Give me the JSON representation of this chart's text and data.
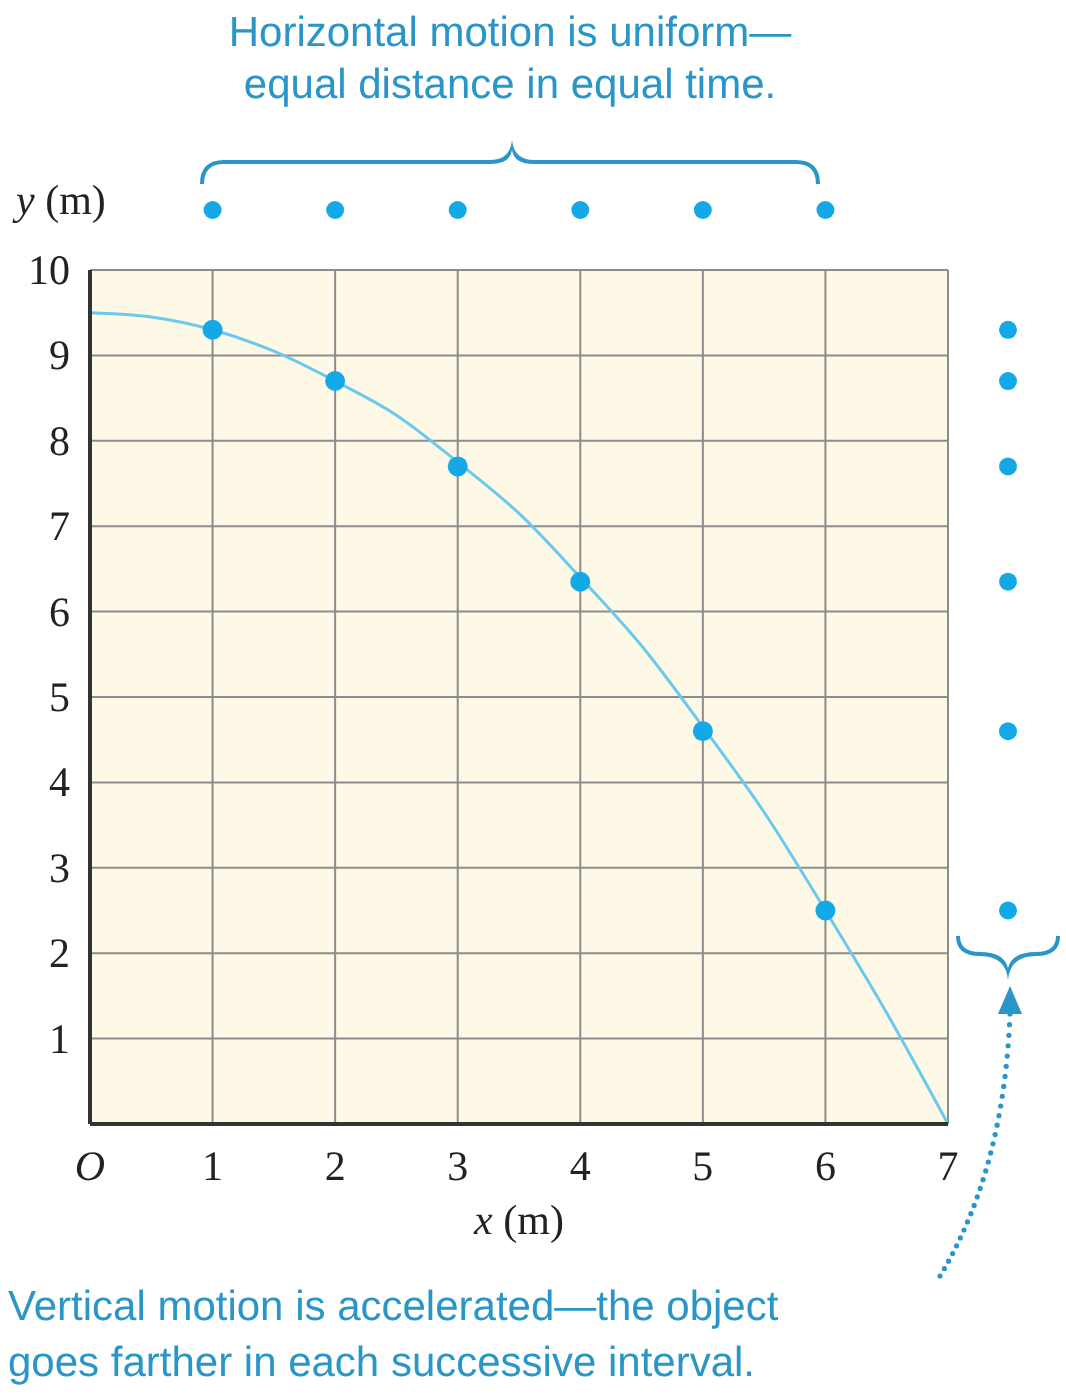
{
  "chart_data": {
    "type": "line",
    "annotations": [
      "Horizontal motion is uniform—equal distance in equal time.",
      "Vertical motion is accelerated—the object goes farther in each successive interval."
    ],
    "xlabel": "x (m)",
    "ylabel": "y (m)",
    "xlim": [
      0,
      7
    ],
    "ylim": [
      0,
      10
    ],
    "xticks": [
      {
        "value": 0,
        "label": "O"
      },
      1,
      2,
      3,
      4,
      5,
      6,
      7
    ],
    "yticks": [
      1,
      2,
      3,
      4,
      5,
      6,
      7,
      8,
      9,
      10
    ],
    "grid": true,
    "series": [
      {
        "color": "#6cc9ec",
        "marker": "none",
        "x": [
          0,
          0.5,
          1,
          1.5,
          2,
          2.5,
          3,
          3.5,
          4,
          4.5,
          5,
          5.5,
          6,
          6.5,
          7
        ],
        "values": [
          9.5,
          9.45,
          9.3,
          9.05,
          8.7,
          8.3,
          7.75,
          7.15,
          6.4,
          5.6,
          4.65,
          3.65,
          2.5,
          1.3,
          0
        ]
      },
      {
        "type": "scatter",
        "color": "#14a9e6",
        "marker": "circle",
        "x": [
          1,
          2,
          3,
          4,
          5,
          6
        ],
        "values": [
          9.3,
          8.7,
          7.7,
          6.35,
          4.6,
          2.5
        ]
      }
    ]
  }
}
